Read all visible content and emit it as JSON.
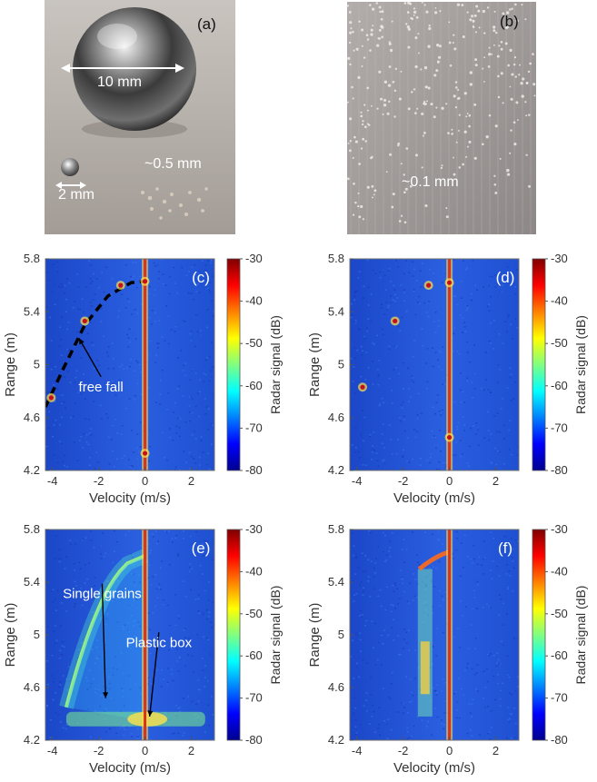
{
  "photos": {
    "a": {
      "label": "(a)",
      "annotations": [
        "10 mm",
        "2 mm",
        "~0.5 mm"
      ]
    },
    "b": {
      "label": "(b)",
      "annotations": [
        "~0.1 mm"
      ]
    }
  },
  "colorbar": {
    "label": "Radar signal (dB)",
    "ticks": [
      -30,
      -40,
      -50,
      -60,
      -70,
      -80
    ],
    "colormap": [
      "#00008f",
      "#0000ff",
      "#0080ff",
      "#00ffff",
      "#80ff80",
      "#ffff00",
      "#ff8000",
      "#ff0000",
      "#800000"
    ]
  },
  "chart_data": [
    {
      "panel": "(c)",
      "type": "heatmap",
      "xlabel": "Velocity (m/s)",
      "ylabel": "Range (m)",
      "xlim": [
        -4.3,
        3
      ],
      "ylim": [
        4.2,
        5.8
      ],
      "xticks": [
        -4,
        -2,
        0,
        2
      ],
      "yticks": [
        4.2,
        4.6,
        5,
        5.4,
        5.8
      ],
      "ytick_labels": [
        "4.2",
        "4.6",
        "5",
        "5.4",
        "5.8"
      ],
      "zero_velocity_line": true,
      "events": [
        {
          "x": -4.05,
          "y": 4.75
        },
        {
          "x": -2.6,
          "y": 5.33
        },
        {
          "x": -1.05,
          "y": 5.6
        },
        {
          "x": 0,
          "y": 5.63
        },
        {
          "x": 0,
          "y": 4.33
        }
      ],
      "freefall_curve": [
        {
          "x": -4.3,
          "y": 4.68
        },
        {
          "x": -3.5,
          "y": 4.98
        },
        {
          "x": -2.6,
          "y": 5.3
        },
        {
          "x": -1.6,
          "y": 5.52
        },
        {
          "x": -0.6,
          "y": 5.62
        },
        {
          "x": 0,
          "y": 5.63
        }
      ],
      "annotations": [
        {
          "text": "free fall",
          "x": -1.9,
          "y": 4.84,
          "arrow_to": {
            "x": -2.85,
            "y": 5.2
          }
        }
      ]
    },
    {
      "panel": "(d)",
      "type": "heatmap",
      "xlabel": "Velocity (m/s)",
      "ylabel": "Range (m)",
      "xlim": [
        -4.3,
        3
      ],
      "ylim": [
        4.2,
        5.8
      ],
      "xticks": [
        -4,
        -2,
        0,
        2
      ],
      "yticks": [
        4.2,
        4.6,
        5,
        5.4,
        5.8
      ],
      "ytick_labels": [
        "4.2",
        "4.6",
        "5",
        "5.4",
        "5.8"
      ],
      "zero_velocity_line": true,
      "events": [
        {
          "x": -0.9,
          "y": 5.6
        },
        {
          "x": -2.35,
          "y": 5.33
        },
        {
          "x": -3.75,
          "y": 4.83
        },
        {
          "x": 0,
          "y": 5.62
        },
        {
          "x": 0,
          "y": 4.45
        }
      ]
    },
    {
      "panel": "(e)",
      "type": "heatmap",
      "xlabel": "Velocity (m/s)",
      "ylabel": "Range (m)",
      "xlim": [
        -4.3,
        3
      ],
      "ylim": [
        4.2,
        5.8
      ],
      "xticks": [
        -4,
        -2,
        0,
        2
      ],
      "yticks": [
        4.2,
        4.6,
        5,
        5.4,
        5.8
      ],
      "ytick_labels": [
        "4.2",
        "4.6",
        "5",
        "5.4",
        "5.8"
      ],
      "zero_velocity_line": true,
      "arc": {
        "x_end": -3.4,
        "y_end": 4.45,
        "y_top": 5.6
      },
      "box_band": {
        "y": 4.36,
        "x_from": -3.4,
        "x_to": 2.6
      },
      "annotations": [
        {
          "text": "Single grains",
          "x": -1.85,
          "y": 5.32,
          "arrow_to": {
            "x": -1.7,
            "y": 4.52
          }
        },
        {
          "text": "Plastic box",
          "x": 0.6,
          "y": 4.95,
          "arrow_to": {
            "x": 0.2,
            "y": 4.38
          }
        }
      ]
    },
    {
      "panel": "(f)",
      "type": "heatmap",
      "xlabel": "Velocity (m/s)",
      "ylabel": "Range (m)",
      "xlim": [
        -4.3,
        3
      ],
      "ylim": [
        4.2,
        5.8
      ],
      "xticks": [
        -4,
        -2,
        0,
        2
      ],
      "yticks": [
        4.2,
        4.6,
        5,
        5.4,
        5.8
      ],
      "ytick_labels": [
        "4.2",
        "4.6",
        "5",
        "5.4",
        "5.8"
      ],
      "zero_velocity_line": true,
      "streak": {
        "x": -1.05,
        "y_from": 4.38,
        "y_to": 5.5
      },
      "top_curve": {
        "x_from": -1.3,
        "y": 5.55
      }
    }
  ]
}
